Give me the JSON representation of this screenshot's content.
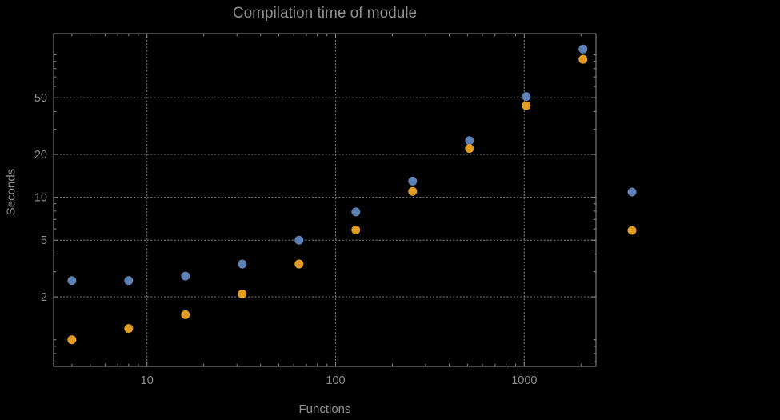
{
  "chart_data": {
    "type": "scatter",
    "title": "Compilation time of module",
    "xlabel": "Functions",
    "ylabel": "Seconds",
    "x_scale": "log",
    "y_scale": "log",
    "xlim": [
      3.2,
      2400
    ],
    "ylim": [
      0.65,
      141
    ],
    "x_ticks": [
      10,
      100,
      1000
    ],
    "y_ticks": [
      2,
      5,
      10,
      20,
      50
    ],
    "grid": {
      "style": "dotted",
      "x_values": [
        10,
        100,
        1000
      ],
      "y_values": [
        2,
        5,
        10,
        20,
        50
      ]
    },
    "series": [
      {
        "name": "blue-series",
        "color": "#5E81B5",
        "marker": "disk",
        "points": [
          [
            4,
            2.6
          ],
          [
            8,
            2.6
          ],
          [
            16,
            2.8
          ],
          [
            32,
            3.4
          ],
          [
            64,
            5.0
          ],
          [
            128,
            7.9
          ],
          [
            256,
            13
          ],
          [
            512,
            25
          ],
          [
            1024,
            51
          ],
          [
            2048,
            110
          ]
        ]
      },
      {
        "name": "orange-series",
        "color": "#E19C24",
        "marker": "disk",
        "points": [
          [
            4,
            1.0
          ],
          [
            8,
            1.2
          ],
          [
            16,
            1.5
          ],
          [
            32,
            2.1
          ],
          [
            64,
            3.4
          ],
          [
            128,
            5.9
          ],
          [
            256,
            11
          ],
          [
            512,
            22
          ],
          [
            1024,
            44
          ],
          [
            2048,
            93
          ]
        ]
      }
    ],
    "legend": {
      "position": "right-of-frame",
      "items": [
        {
          "color": "#5E81B5",
          "label": ""
        },
        {
          "color": "#E19C24",
          "label": ""
        }
      ]
    }
  },
  "style": {
    "background": "#000000",
    "frame_color": "#8f8f8f",
    "grid_color": "#767676",
    "text_color": "#8f8f8f"
  }
}
